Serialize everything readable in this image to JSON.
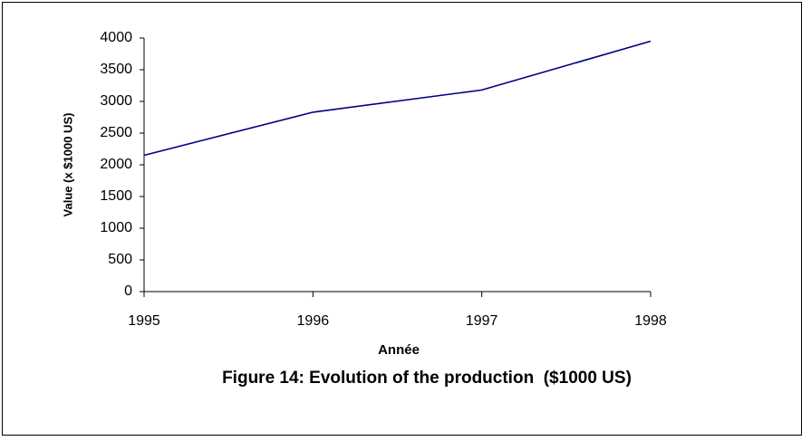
{
  "chart_data": {
    "type": "line",
    "title": "Figure 14: Evolution of the production  ($1000 US)",
    "x_label": "Année",
    "y_label": "Value (x $1000 US)",
    "x": [
      1995,
      1996,
      1997,
      1998
    ],
    "series": [
      {
        "name": "Value",
        "color": "#000080",
        "values": [
          2150,
          2830,
          3180,
          3950
        ]
      }
    ],
    "xlim": [
      1995,
      1998
    ],
    "xticks": [
      1995,
      1996,
      1997,
      1998
    ],
    "ylim": [
      0,
      4000
    ],
    "yticks": [
      0,
      500,
      1000,
      1500,
      2000,
      2500,
      3000,
      3500,
      4000
    ],
    "grid": false
  }
}
